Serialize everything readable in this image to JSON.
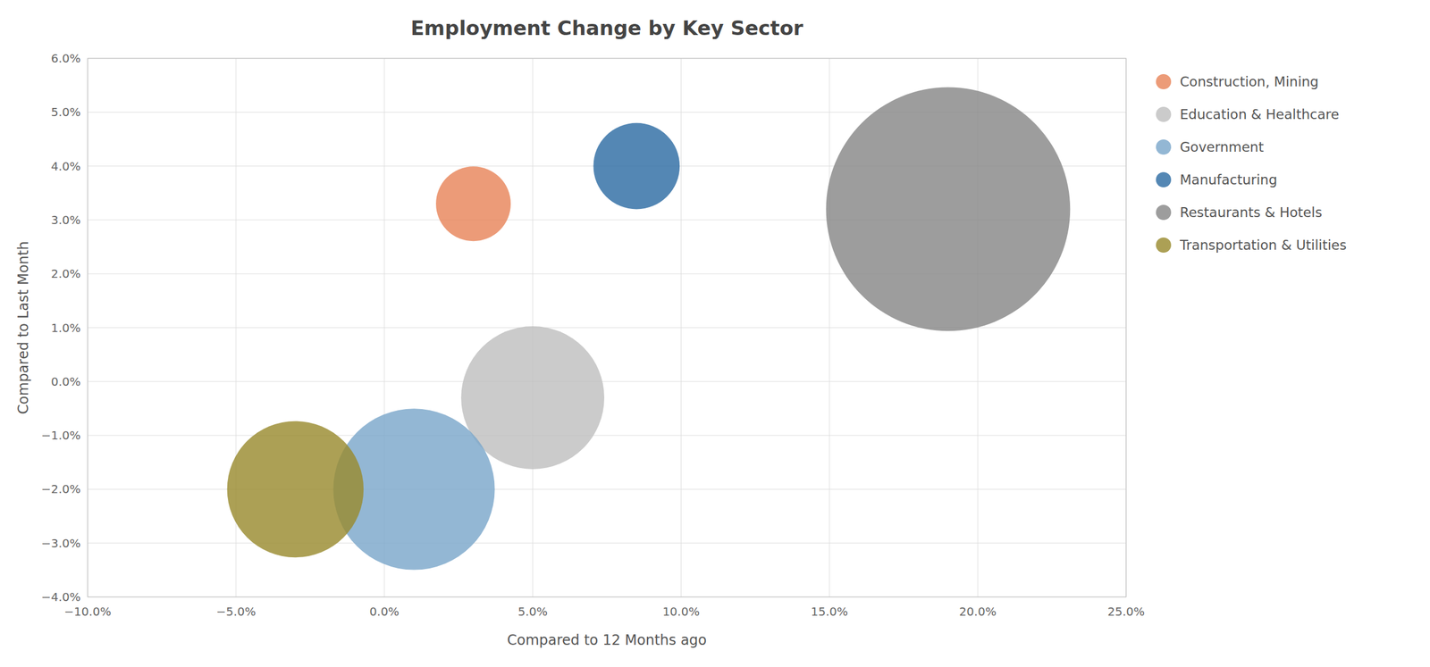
{
  "chart_data": {
    "type": "scatter",
    "title": "Employment Change by Key Sector",
    "x_label": "Compared to 12 Months ago",
    "y_label": "Compared to Last Month",
    "series": [
      {
        "name": "Construction, Mining",
        "color": "#E8855A",
        "x": [
          0.03
        ],
        "values": [
          0.033
        ],
        "sizes": [
          300
        ]
      },
      {
        "name": "Education & Healthcare",
        "color": "#C0C0C0",
        "x": [
          0.05
        ],
        "values": [
          -0.003
        ],
        "sizes": [
          1100
        ]
      },
      {
        "name": "Government",
        "color": "#7BA7CB",
        "x": [
          0.01
        ],
        "values": [
          -0.02
        ],
        "sizes": [
          1400
        ]
      },
      {
        "name": "Manufacturing",
        "color": "#2E6DA4",
        "x": [
          0.085
        ],
        "values": [
          0.04
        ],
        "sizes": [
          400
        ]
      },
      {
        "name": "Restaurants & Hotels",
        "color": "#888888",
        "x": [
          0.19
        ],
        "values": [
          0.032
        ],
        "sizes": [
          3200
        ]
      },
      {
        "name": "Transportation & Utilities",
        "color": "#9A8B30",
        "x": [
          -0.03
        ],
        "values": [
          -0.02
        ],
        "sizes": [
          1000
        ]
      }
    ],
    "xlim": [
      -0.1,
      0.25
    ],
    "ylim": [
      -0.04,
      0.06
    ],
    "xticks": [
      {
        "value": -0.1,
        "label": "−10.0%"
      },
      {
        "value": -0.05,
        "label": "−5.0%"
      },
      {
        "value": 0.0,
        "label": "0.0%"
      },
      {
        "value": 0.05,
        "label": "5.0%"
      },
      {
        "value": 0.1,
        "label": "10.0%"
      },
      {
        "value": 0.15,
        "label": "15.0%"
      },
      {
        "value": 0.2,
        "label": "20.0%"
      },
      {
        "value": 0.25,
        "label": "25.0%"
      }
    ],
    "yticks": [
      {
        "value": -0.04,
        "label": "−4.0%"
      },
      {
        "value": -0.03,
        "label": "−3.0%"
      },
      {
        "value": -0.02,
        "label": "−2.0%"
      },
      {
        "value": -0.01,
        "label": "−1.0%"
      },
      {
        "value": 0.0,
        "label": "0.0%"
      },
      {
        "value": 0.01,
        "label": "1.0%"
      },
      {
        "value": 0.02,
        "label": "2.0%"
      },
      {
        "value": 0.03,
        "label": "3.0%"
      },
      {
        "value": 0.04,
        "label": "4.0%"
      },
      {
        "value": 0.05,
        "label": "5.0%"
      },
      {
        "value": 0.06,
        "label": "6.0%"
      }
    ],
    "grid": true,
    "legend": "right"
  }
}
